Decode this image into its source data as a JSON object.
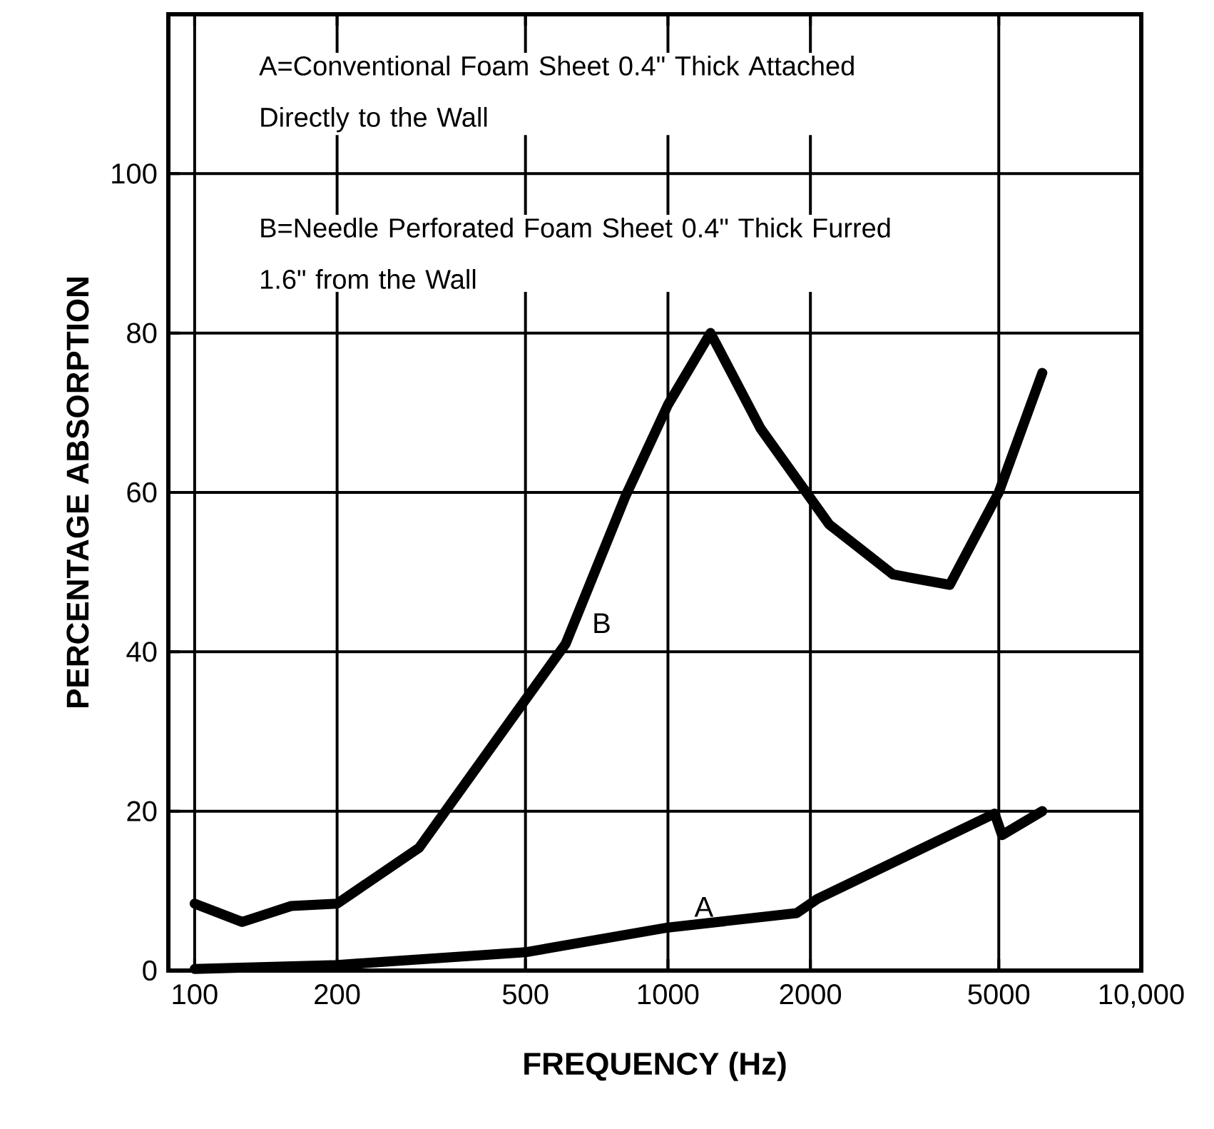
{
  "chart_data": {
    "type": "line",
    "xlabel": "FREQUENCY (Hz)",
    "ylabel": "PERCENTAGE ABSORPTION",
    "log": "x",
    "grid": true,
    "marker": "none",
    "line_style": "solid",
    "xlim": [
      88,
      10000
    ],
    "xticks": [
      100,
      200,
      500,
      1000,
      2000,
      5000,
      {
        "value": 10000,
        "label": "10,000"
      }
    ],
    "ylim": [
      0,
      120
    ],
    "yticks": [
      0,
      20,
      40,
      60,
      80,
      100
    ],
    "series": [
      {
        "name": "A",
        "color": "#000000",
        "x": [
          100,
          200,
          500,
          1000,
          1870,
          2070,
          4900,
          5080,
          6180
        ],
        "values": [
          0.2,
          0.7,
          2.3,
          5.4,
          7.2,
          9,
          19.7,
          17,
          20
        ]
      },
      {
        "name": "B",
        "color": "#000000",
        "x": [
          100,
          126,
          160,
          200,
          298,
          500,
          608,
          813,
          1000,
          1230,
          1570,
          2190,
          2990,
          3940,
          5000,
          6180
        ],
        "values": [
          8.4,
          6.1,
          8.1,
          8.4,
          15.4,
          34,
          41,
          59.5,
          71,
          80,
          68,
          56,
          49.7,
          48.4,
          60,
          75
        ]
      }
    ],
    "annotations": [
      "A=Conventional Foam Sheet 0.4\" Thick Attached Directly to the Wall",
      "B=Needle Perforated Foam Sheet 0.4\" Thick Furred 1.6\" from the Wall"
    ]
  }
}
